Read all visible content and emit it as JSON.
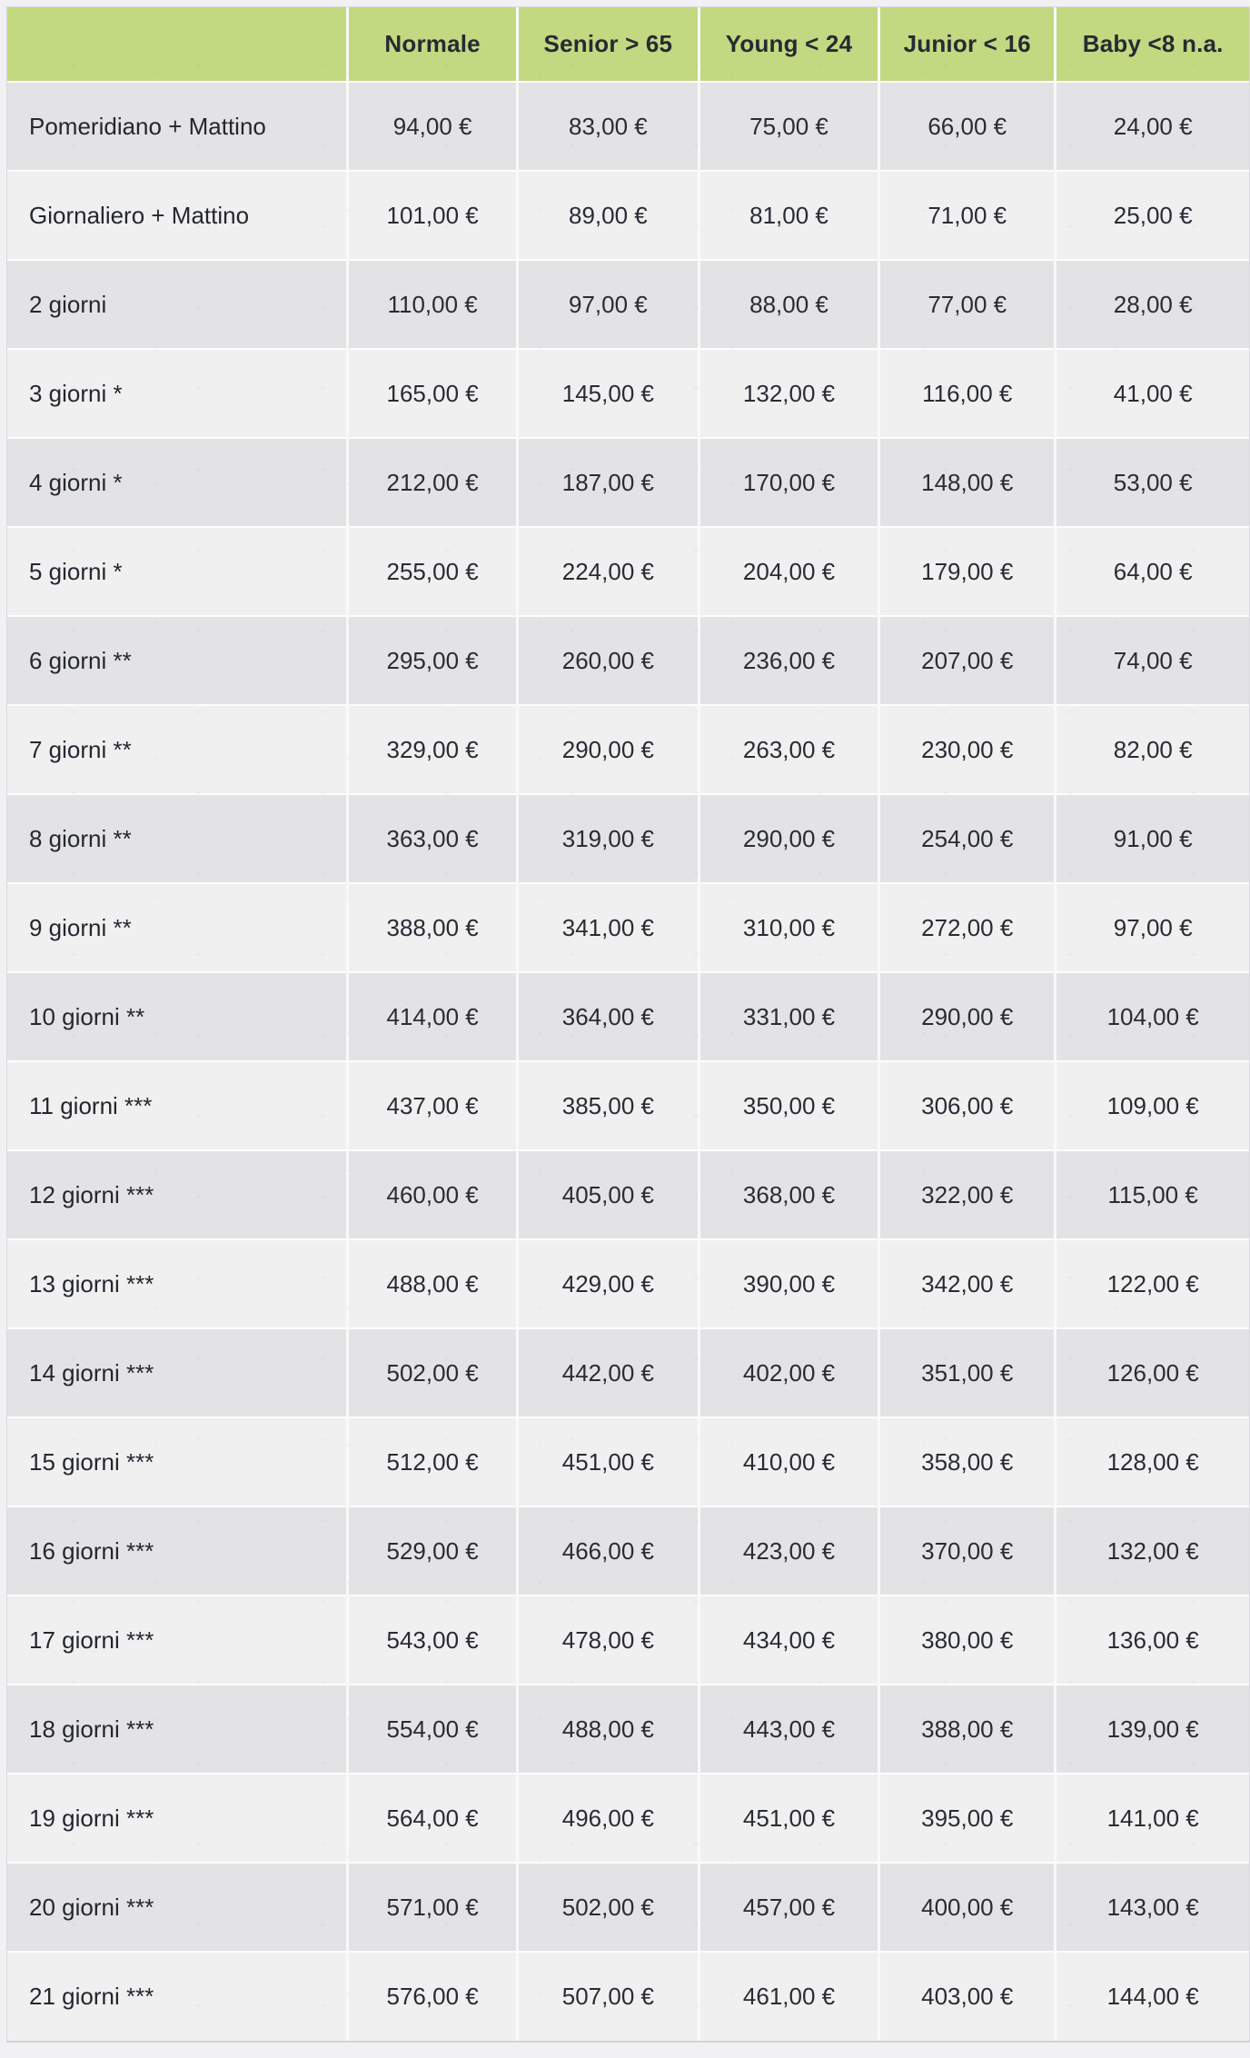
{
  "table": {
    "columns": [
      {
        "id": "label",
        "label": ""
      },
      {
        "id": "normale",
        "label": "Normale"
      },
      {
        "id": "senior",
        "label": "Senior > 65"
      },
      {
        "id": "young",
        "label": "Young < 24"
      },
      {
        "id": "junior",
        "label": "Junior < 16"
      },
      {
        "id": "baby",
        "label": "Baby <8 n.a."
      }
    ],
    "rows": [
      {
        "label": "Pomeridiano + Mattino",
        "values": [
          "94,00 €",
          "83,00 €",
          "75,00 €",
          "66,00 €",
          "24,00 €"
        ]
      },
      {
        "label": "Giornaliero + Mattino",
        "values": [
          "101,00 €",
          "89,00 €",
          "81,00 €",
          "71,00 €",
          "25,00 €"
        ]
      },
      {
        "label": "2 giorni",
        "values": [
          "110,00 €",
          "97,00 €",
          "88,00 €",
          "77,00 €",
          "28,00 €"
        ]
      },
      {
        "label": "3 giorni *",
        "values": [
          "165,00 €",
          "145,00 €",
          "132,00 €",
          "116,00 €",
          "41,00 €"
        ]
      },
      {
        "label": "4 giorni *",
        "values": [
          "212,00 €",
          "187,00 €",
          "170,00 €",
          "148,00 €",
          "53,00 €"
        ]
      },
      {
        "label": "5 giorni *",
        "values": [
          "255,00 €",
          "224,00 €",
          "204,00 €",
          "179,00 €",
          "64,00 €"
        ]
      },
      {
        "label": "6 giorni **",
        "values": [
          "295,00 €",
          "260,00 €",
          "236,00 €",
          "207,00 €",
          "74,00 €"
        ]
      },
      {
        "label": "7 giorni **",
        "values": [
          "329,00 €",
          "290,00 €",
          "263,00 €",
          "230,00 €",
          "82,00 €"
        ]
      },
      {
        "label": "8 giorni **",
        "values": [
          "363,00 €",
          "319,00 €",
          "290,00 €",
          "254,00 €",
          "91,00 €"
        ]
      },
      {
        "label": "9 giorni **",
        "values": [
          "388,00 €",
          "341,00 €",
          "310,00 €",
          "272,00 €",
          "97,00 €"
        ]
      },
      {
        "label": "10 giorni **",
        "values": [
          "414,00 €",
          "364,00 €",
          "331,00 €",
          "290,00 €",
          "104,00 €"
        ]
      },
      {
        "label": "11 giorni ***",
        "values": [
          "437,00 €",
          "385,00 €",
          "350,00 €",
          "306,00 €",
          "109,00 €"
        ]
      },
      {
        "label": "12 giorni ***",
        "values": [
          "460,00 €",
          "405,00 €",
          "368,00 €",
          "322,00 €",
          "115,00 €"
        ]
      },
      {
        "label": "13 giorni ***",
        "values": [
          "488,00 €",
          "429,00 €",
          "390,00 €",
          "342,00 €",
          "122,00 €"
        ]
      },
      {
        "label": "14 giorni ***",
        "values": [
          "502,00 €",
          "442,00 €",
          "402,00 €",
          "351,00 €",
          "126,00 €"
        ]
      },
      {
        "label": "15 giorni ***",
        "values": [
          "512,00 €",
          "451,00 €",
          "410,00 €",
          "358,00 €",
          "128,00 €"
        ]
      },
      {
        "label": "16 giorni ***",
        "values": [
          "529,00 €",
          "466,00 €",
          "423,00 €",
          "370,00 €",
          "132,00 €"
        ]
      },
      {
        "label": "17 giorni ***",
        "values": [
          "543,00 €",
          "478,00 €",
          "434,00 €",
          "380,00 €",
          "136,00 €"
        ]
      },
      {
        "label": "18 giorni ***",
        "values": [
          "554,00 €",
          "488,00 €",
          "443,00 €",
          "388,00 €",
          "139,00 €"
        ]
      },
      {
        "label": "19 giorni ***",
        "values": [
          "564,00 €",
          "496,00 €",
          "451,00 €",
          "395,00 €",
          "141,00 €"
        ]
      },
      {
        "label": "20 giorni ***",
        "values": [
          "571,00 €",
          "502,00 €",
          "457,00 €",
          "400,00 €",
          "143,00 €"
        ]
      },
      {
        "label": "21 giorni ***",
        "values": [
          "576,00 €",
          "507,00 €",
          "461,00 €",
          "403,00 €",
          "144,00 €"
        ]
      }
    ]
  },
  "colors": {
    "header_background": "#c2d881",
    "header_text": "#262a32",
    "row_dark": "#e3e3e5",
    "row_light": "#f0f0f1",
    "cell_text": "#292c33",
    "page_background": "#f1f1f3",
    "table_border": "#d9d9df"
  }
}
